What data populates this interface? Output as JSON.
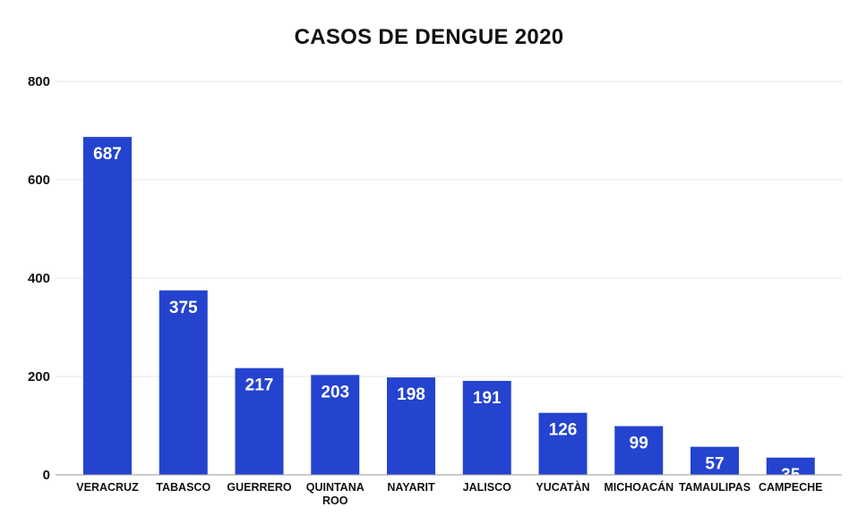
{
  "title": "CASOS DE DENGUE 2020",
  "colors": {
    "bar": "#2443CF",
    "grid": "#e4e4e4",
    "axis": "#9a9a9a",
    "label": "#ffffff",
    "text": "#111111"
  },
  "chart_data": {
    "type": "bar",
    "title": "CASOS DE DENGUE 2020",
    "xlabel": "",
    "ylabel": "",
    "categories": [
      [
        "VERACRUZ"
      ],
      [
        "TABASCO"
      ],
      [
        "GUERRERO"
      ],
      [
        "QUINTANA",
        "ROO"
      ],
      [
        "NAYARIT"
      ],
      [
        "JALISCO"
      ],
      [
        "YUCATÀN"
      ],
      [
        "MICHOACÁN"
      ],
      [
        "TAMAULIPAS"
      ],
      [
        "CAMPECHE"
      ]
    ],
    "values": [
      687,
      375,
      217,
      203,
      198,
      191,
      126,
      99,
      57,
      35
    ],
    "ylim": [
      0,
      800
    ],
    "yticks": [
      0,
      200,
      400,
      600,
      800
    ],
    "grid": true,
    "legend": "none",
    "data_labels": true
  }
}
